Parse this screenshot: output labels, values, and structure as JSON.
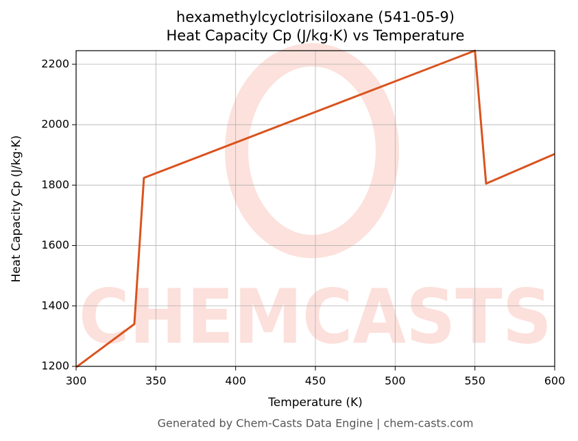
{
  "chart_data": {
    "type": "line",
    "title": "hexamethylcyclotrisiloxane (541-05-9)",
    "subtitle": "Heat Capacity Cp (J/kg·K) vs Temperature",
    "x_label": "Temperature (K)",
    "y_label": "Heat Capacity Cp (J/kg·K)",
    "x": [
      300,
      336.5,
      342.5,
      550,
      557,
      600
    ],
    "series": [
      {
        "name": "Cp",
        "color": "#d9531e",
        "values": [
          1197,
          1340,
          1824,
          2245,
          1805,
          1903
        ]
      }
    ],
    "xlim": [
      300,
      600
    ],
    "xticks": [
      300,
      350,
      400,
      450,
      500,
      550,
      600
    ],
    "ylim": [
      1200,
      2245
    ],
    "yticks": [
      1200,
      1400,
      1600,
      1800,
      2000,
      2200
    ],
    "grid": true,
    "watermark": "CHEMCASTS",
    "footer": "Generated by Chem-Casts Data Engine | chem-casts.com"
  }
}
